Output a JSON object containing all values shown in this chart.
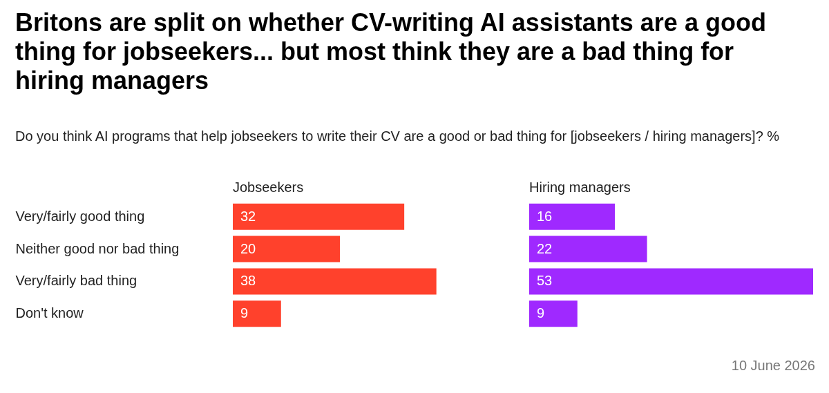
{
  "chart_data": [
    {
      "type": "bar",
      "orientation": "horizontal",
      "title": "Britons are split on whether CV-writing AI assistants are a good thing for jobseekers... but most think they are a bad thing for hiring managers",
      "subtitle": "Do you think AI programs that help jobseekers to write their CV are a good or bad thing for [jobseekers / hiring managers]? %",
      "categories": [
        "Very/fairly good thing",
        "Neither good nor bad thing",
        "Very/fairly bad thing",
        "Don't know"
      ],
      "series": [
        {
          "name": "Jobseekers",
          "color": "#ff412c",
          "values": [
            32,
            20,
            38,
            9
          ]
        }
      ],
      "data_labels": true
    },
    {
      "type": "bar",
      "orientation": "horizontal",
      "categories": [
        null,
        null,
        null,
        null
      ],
      "tick_labels": false,
      "series": [
        {
          "name": "Hiring managers",
          "color": "#9f29ff",
          "values": [
            16,
            22,
            53,
            9
          ]
        }
      ],
      "data_labels": true,
      "annotations": [
        "10 June 2026"
      ]
    }
  ]
}
